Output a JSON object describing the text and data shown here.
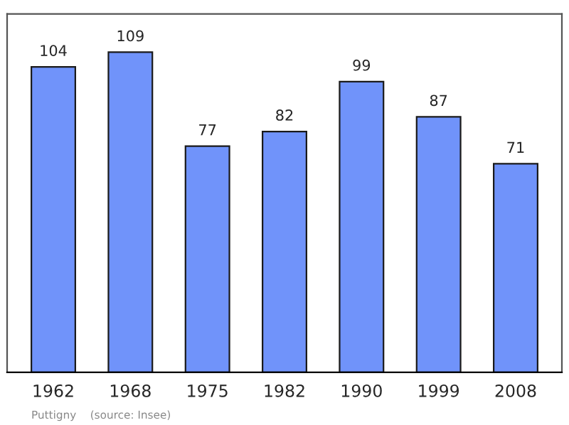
{
  "chart_data": {
    "type": "bar",
    "categories": [
      "1962",
      "1968",
      "1975",
      "1982",
      "1990",
      "1999",
      "2008"
    ],
    "values": [
      104,
      109,
      77,
      82,
      99,
      87,
      71
    ],
    "color": "#7093fa",
    "ylim": [
      0,
      122
    ],
    "tick_labels": "x",
    "data_labels": true,
    "grid": false,
    "legend": false,
    "annotations": [
      "Puttigny    (source: Insee)"
    ]
  }
}
